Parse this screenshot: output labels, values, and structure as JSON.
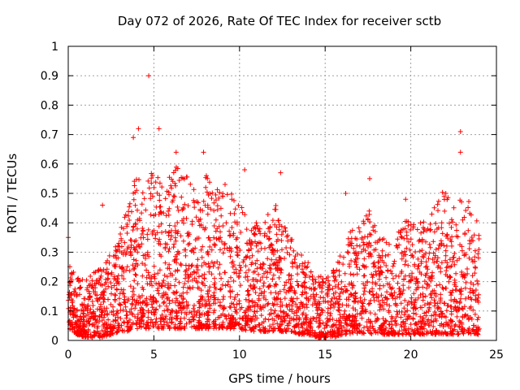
{
  "chart_data": {
    "type": "scatter",
    "title": "Day 072 of 2026, Rate Of TEC Index for receiver sctb",
    "xlabel": "GPS time / hours",
    "ylabel": "ROTI / TECUs",
    "xlim": [
      0,
      25
    ],
    "ylim": [
      0,
      1
    ],
    "xticks": [
      "0",
      "5",
      "10",
      "15",
      "20",
      "25"
    ],
    "yticks": [
      "0",
      "0.1",
      "0.2",
      "0.3",
      "0.4",
      "0.5",
      "0.6",
      "0.7",
      "0.8",
      "0.9",
      "1"
    ],
    "grid": true,
    "marker": "+",
    "marker_color": "#ff0000",
    "x_range_of_data": [
      0,
      24
    ],
    "envelope": {
      "x": [
        0,
        0.5,
        1,
        1.5,
        2,
        2.5,
        3,
        3.5,
        4,
        4.5,
        5,
        5.5,
        6,
        6.5,
        7,
        7.5,
        8,
        8.5,
        9,
        9.5,
        10,
        10.5,
        11,
        11.5,
        12,
        12.5,
        13,
        13.5,
        14,
        14.5,
        15,
        15.5,
        16,
        16.5,
        17,
        17.5,
        18,
        18.5,
        19,
        19.5,
        20,
        20.5,
        21,
        21.5,
        22,
        22.5,
        23,
        23.5,
        24
      ],
      "upper": [
        0.27,
        0.22,
        0.2,
        0.24,
        0.26,
        0.3,
        0.38,
        0.45,
        0.58,
        0.55,
        0.6,
        0.52,
        0.58,
        0.6,
        0.55,
        0.52,
        0.58,
        0.5,
        0.55,
        0.5,
        0.48,
        0.42,
        0.4,
        0.42,
        0.48,
        0.4,
        0.35,
        0.3,
        0.27,
        0.22,
        0.22,
        0.26,
        0.3,
        0.38,
        0.4,
        0.45,
        0.38,
        0.35,
        0.33,
        0.4,
        0.42,
        0.4,
        0.42,
        0.48,
        0.52,
        0.45,
        0.5,
        0.48,
        0.38
      ],
      "lower": [
        0.04,
        0.02,
        0.01,
        0.01,
        0.01,
        0.02,
        0.03,
        0.03,
        0.04,
        0.04,
        0.04,
        0.04,
        0.04,
        0.04,
        0.04,
        0.04,
        0.04,
        0.04,
        0.04,
        0.04,
        0.04,
        0.03,
        0.03,
        0.03,
        0.03,
        0.03,
        0.03,
        0.02,
        0.02,
        0.01,
        0.01,
        0.01,
        0.02,
        0.02,
        0.02,
        0.02,
        0.02,
        0.02,
        0.02,
        0.02,
        0.02,
        0.02,
        0.02,
        0.02,
        0.02,
        0.02,
        0.02,
        0.02,
        0.02
      ]
    },
    "notable_points": [
      {
        "x": 4.7,
        "y": 0.9
      },
      {
        "x": 4.1,
        "y": 0.72
      },
      {
        "x": 5.3,
        "y": 0.72
      },
      {
        "x": 3.8,
        "y": 0.69
      },
      {
        "x": 22.9,
        "y": 0.71
      },
      {
        "x": 22.9,
        "y": 0.64
      },
      {
        "x": 6.3,
        "y": 0.64
      },
      {
        "x": 7.9,
        "y": 0.64
      },
      {
        "x": 12.4,
        "y": 0.57
      },
      {
        "x": 10.3,
        "y": 0.58
      },
      {
        "x": 17.6,
        "y": 0.55
      },
      {
        "x": 2.0,
        "y": 0.46
      },
      {
        "x": 0.0,
        "y": 0.35
      },
      {
        "x": 16.2,
        "y": 0.5
      },
      {
        "x": 19.7,
        "y": 0.48
      }
    ]
  }
}
